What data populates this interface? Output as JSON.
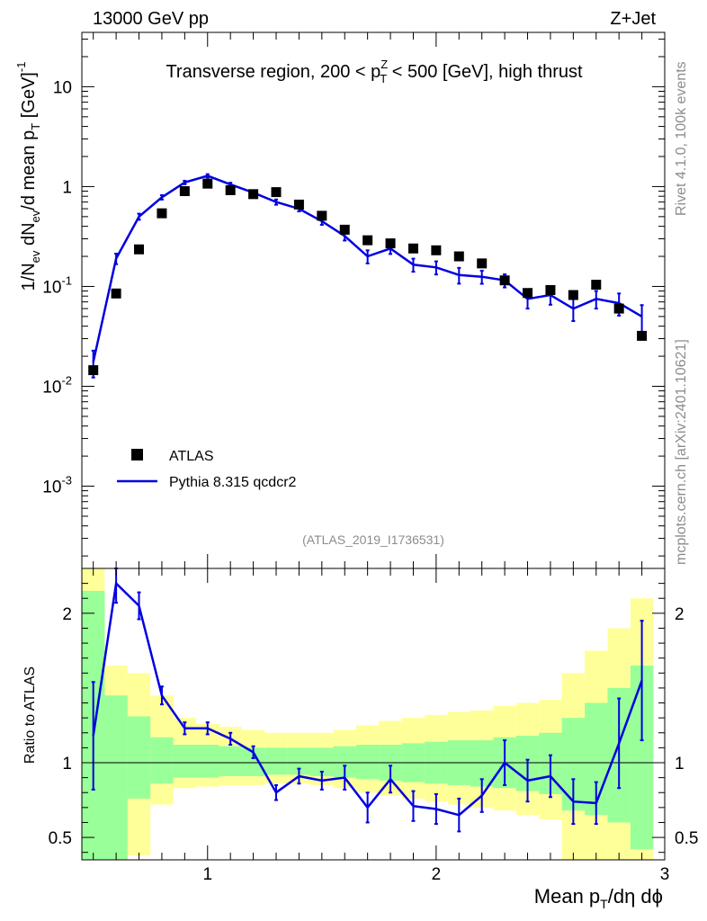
{
  "header": {
    "left": "13000 GeV pp",
    "right": "Z+Jet"
  },
  "side": {
    "rivet": "Rivet 4.1.0,  100k events",
    "mcplots": "mcplots.cern.ch [arXiv:2401.10621]"
  },
  "chart_data": [
    {
      "type": "scatter",
      "panel": "main",
      "title": "Transverse region, 200 < p_T^Z < 500 [GeV], high thrust",
      "title_parts": {
        "pre": "Transverse region, 200 < p",
        "sup": "Z",
        "sub": "T",
        "post": " < 500 [GeV], high thrust"
      },
      "ylabel": "1/N_ev dN_ev/d mean p_T [GeV]^-1",
      "ylabel_parts": {
        "a": "1/N",
        "a_sub": "ev",
        "b": " dN",
        "b_sub": "ev",
        "c": "/d mean p",
        "c_sub": "T",
        "d": " [GeV]",
        "d_sup": "-1"
      },
      "yscale": "log",
      "ylim": [
        0.00015,
        35
      ],
      "xlim": [
        0.45,
        3.0
      ],
      "yticks": [
        {
          "value": 0.001,
          "base": "10",
          "exp": "-3"
        },
        {
          "value": 0.01,
          "base": "10",
          "exp": "-2"
        },
        {
          "value": 0.1,
          "base": "10",
          "exp": "-1"
        },
        {
          "value": 1,
          "base": "1",
          "exp": ""
        },
        {
          "value": 10,
          "base": "10",
          "exp": ""
        }
      ],
      "watermark": "(ATLAS_2019_I1736531)",
      "legend": {
        "position": "lower-left",
        "entries": [
          {
            "label": "ATLAS",
            "marker": "square",
            "color": "#000000"
          },
          {
            "label": "Pythia 8.315 qcdcr2",
            "marker": "line",
            "color": "#0000e0"
          }
        ]
      },
      "x": [
        0.5,
        0.6,
        0.7,
        0.8,
        0.9,
        1.0,
        1.1,
        1.2,
        1.3,
        1.4,
        1.5,
        1.6,
        1.7,
        1.8,
        1.9,
        2.0,
        2.1,
        2.2,
        2.3,
        2.4,
        2.5,
        2.6,
        2.7,
        2.8,
        2.9
      ],
      "series": [
        {
          "name": "ATLAS",
          "color": "#000000",
          "values": [
            0.0145,
            0.085,
            0.235,
            0.54,
            0.9,
            1.07,
            0.92,
            0.84,
            0.88,
            0.66,
            0.51,
            0.37,
            0.29,
            0.27,
            0.24,
            0.23,
            0.2,
            0.17,
            0.115,
            0.086,
            0.092,
            0.082,
            0.104,
            0.06,
            0.032
          ]
        },
        {
          "name": "Pythia 8.315 qcdcr2",
          "color": "#0000e0",
          "values": [
            0.0175,
            0.19,
            0.5,
            0.78,
            1.1,
            1.28,
            1.05,
            0.87,
            0.7,
            0.6,
            0.45,
            0.32,
            0.2,
            0.24,
            0.165,
            0.155,
            0.13,
            0.125,
            0.115,
            0.075,
            0.082,
            0.06,
            0.075,
            0.068,
            0.05
          ],
          "err_rel": [
            0.3,
            0.12,
            0.07,
            0.05,
            0.04,
            0.04,
            0.04,
            0.04,
            0.06,
            0.06,
            0.08,
            0.1,
            0.15,
            0.12,
            0.15,
            0.15,
            0.18,
            0.15,
            0.15,
            0.2,
            0.2,
            0.25,
            0.2,
            0.25,
            0.3
          ]
        }
      ]
    },
    {
      "type": "line",
      "panel": "ratio",
      "ylabel": "Ratio to ATLAS",
      "ylim": [
        0.35,
        2.3
      ],
      "xlim": [
        0.45,
        3.0
      ],
      "reference": 1,
      "yticks": [
        0.5,
        1,
        2
      ],
      "ytick_labels": [
        "0.5",
        "1",
        "2"
      ],
      "xticks": [
        1,
        2,
        3
      ],
      "xtick_labels": [
        "1",
        "2",
        "3"
      ],
      "xlabel": "Mean p_T/dη dϕ",
      "xlabel_parts": {
        "a": "Mean p",
        "sub": "T",
        "b": "/dη dϕ"
      },
      "x": [
        0.5,
        0.6,
        0.7,
        0.8,
        0.9,
        1.0,
        1.1,
        1.2,
        1.3,
        1.4,
        1.5,
        1.6,
        1.7,
        1.8,
        1.9,
        2.0,
        2.1,
        2.2,
        2.3,
        2.4,
        2.5,
        2.6,
        2.7,
        2.8,
        2.9
      ],
      "ratio": [
        1.18,
        2.2,
        2.05,
        1.45,
        1.23,
        1.23,
        1.16,
        1.07,
        0.8,
        0.91,
        0.88,
        0.9,
        0.7,
        0.89,
        0.71,
        0.69,
        0.65,
        0.78,
        1.0,
        0.88,
        0.91,
        0.74,
        0.73,
        1.13,
        1.55
      ],
      "ratio_err": [
        0.36,
        0.13,
        0.09,
        0.06,
        0.04,
        0.04,
        0.04,
        0.04,
        0.05,
        0.05,
        0.06,
        0.08,
        0.1,
        0.09,
        0.1,
        0.1,
        0.11,
        0.11,
        0.15,
        0.14,
        0.14,
        0.15,
        0.14,
        0.3,
        0.4
      ],
      "band_green": [
        [
          0.35,
          2.15
        ],
        [
          0.35,
          1.45
        ],
        [
          0.76,
          1.31
        ],
        [
          0.86,
          1.17
        ],
        [
          0.9,
          1.12
        ],
        [
          0.9,
          1.12
        ],
        [
          0.91,
          1.11
        ],
        [
          0.91,
          1.1
        ],
        [
          0.92,
          1.1
        ],
        [
          0.92,
          1.1
        ],
        [
          0.91,
          1.1
        ],
        [
          0.9,
          1.11
        ],
        [
          0.89,
          1.12
        ],
        [
          0.88,
          1.12
        ],
        [
          0.87,
          1.13
        ],
        [
          0.86,
          1.14
        ],
        [
          0.85,
          1.15
        ],
        [
          0.84,
          1.15
        ],
        [
          0.83,
          1.17
        ],
        [
          0.81,
          1.18
        ],
        [
          0.79,
          1.2
        ],
        [
          0.68,
          1.3
        ],
        [
          0.65,
          1.4
        ],
        [
          0.6,
          1.5
        ],
        [
          0.42,
          1.65
        ]
      ],
      "band_green_color": "#99ff99",
      "band_yellow": [
        [
          0.35,
          2.35
        ],
        [
          0.35,
          1.65
        ],
        [
          0.38,
          1.6
        ],
        [
          0.72,
          1.45
        ],
        [
          0.83,
          1.3
        ],
        [
          0.84,
          1.26
        ],
        [
          0.85,
          1.24
        ],
        [
          0.85,
          1.22
        ],
        [
          0.86,
          1.2
        ],
        [
          0.86,
          1.2
        ],
        [
          0.85,
          1.2
        ],
        [
          0.83,
          1.22
        ],
        [
          0.8,
          1.25
        ],
        [
          0.78,
          1.28
        ],
        [
          0.76,
          1.3
        ],
        [
          0.74,
          1.32
        ],
        [
          0.72,
          1.34
        ],
        [
          0.7,
          1.35
        ],
        [
          0.68,
          1.38
        ],
        [
          0.65,
          1.4
        ],
        [
          0.62,
          1.42
        ],
        [
          0.35,
          1.6
        ],
        [
          0.35,
          1.75
        ],
        [
          0.35,
          1.9
        ],
        [
          0.35,
          2.1
        ]
      ],
      "band_yellow_color": "#ffff99"
    }
  ]
}
